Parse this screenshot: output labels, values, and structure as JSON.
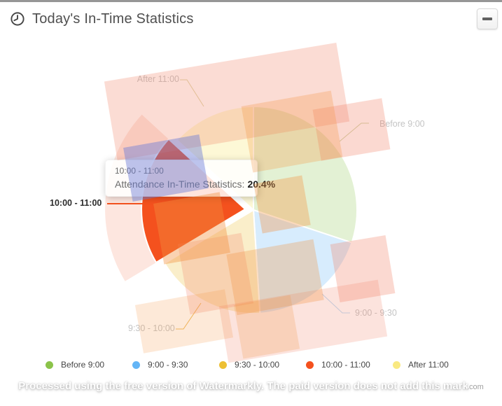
{
  "header": {
    "title": "Today's In-Time Statistics"
  },
  "tooltip": {
    "title": "10:00 - 11:00",
    "series_label": "Attendance In-Time Statistics:",
    "value": "20.4%"
  },
  "chart_data": {
    "type": "pie",
    "title": "Today's In-Time Statistics",
    "series_name": "Attendance In-Time Statistics",
    "unit": "%",
    "categories": [
      "Before 9:00",
      "9:00 - 9:30",
      "9:30 - 10:00",
      "10:00 - 11:00",
      "After 11:00"
    ],
    "values": [
      30.1,
      18.9,
      17.4,
      20.4,
      13.2
    ],
    "colors": [
      "#8bc34a",
      "#64b5f6",
      "#edbf33",
      "#f4511e",
      "#f9e981"
    ],
    "highlighted_category": "10:00 - 11:00",
    "highlighted_value": 20.4,
    "start_angle": 90,
    "direction": "clockwise",
    "legend_position": "bottom"
  },
  "watermark": {
    "text": "Processed using the free version of Watermarkly. The paid version does not add this mark",
    "suffix": ".com"
  }
}
